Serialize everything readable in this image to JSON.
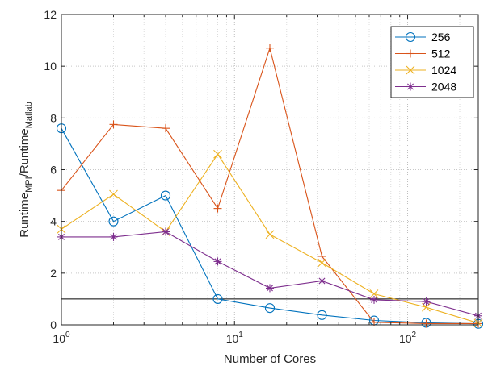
{
  "chart_data": {
    "type": "line",
    "xscale": "log",
    "xlim": [
      1,
      256
    ],
    "ylim": [
      0,
      12
    ],
    "x": [
      1,
      2,
      4,
      8,
      16,
      32,
      64,
      128,
      256
    ],
    "xlabel": "Number of Cores",
    "ylabel": {
      "base": "Runtime",
      "sub1": "MPI",
      "sep": "/Runtime",
      "sub2": "Matlab"
    },
    "xticks": [
      1,
      10,
      100
    ],
    "xtick_labels": [
      {
        "base": "10",
        "exp": "0"
      },
      {
        "base": "10",
        "exp": "1"
      },
      {
        "base": "10",
        "exp": "2"
      }
    ],
    "yticks": [
      0,
      2,
      4,
      6,
      8,
      10,
      12
    ],
    "grid": true,
    "reference_line_y": 1,
    "legend_position": "top-right",
    "series": [
      {
        "name": "256",
        "marker": "circle",
        "color": "#0072BD",
        "values": [
          7.6,
          4.0,
          5.0,
          1.0,
          0.65,
          0.38,
          0.17,
          0.08,
          0.04
        ]
      },
      {
        "name": "512",
        "marker": "plus",
        "color": "#D95319",
        "values": [
          5.2,
          7.75,
          7.6,
          4.5,
          10.7,
          2.65,
          0.1,
          0.05,
          0.05
        ]
      },
      {
        "name": "1024",
        "marker": "x",
        "color": "#EDB120",
        "values": [
          3.7,
          5.05,
          3.6,
          6.6,
          3.5,
          2.4,
          1.2,
          0.68,
          0.07
        ]
      },
      {
        "name": "2048",
        "marker": "asterisk",
        "color": "#7E2F8E",
        "values": [
          3.4,
          3.4,
          3.6,
          2.45,
          1.42,
          1.7,
          0.97,
          0.9,
          0.35
        ]
      }
    ]
  }
}
